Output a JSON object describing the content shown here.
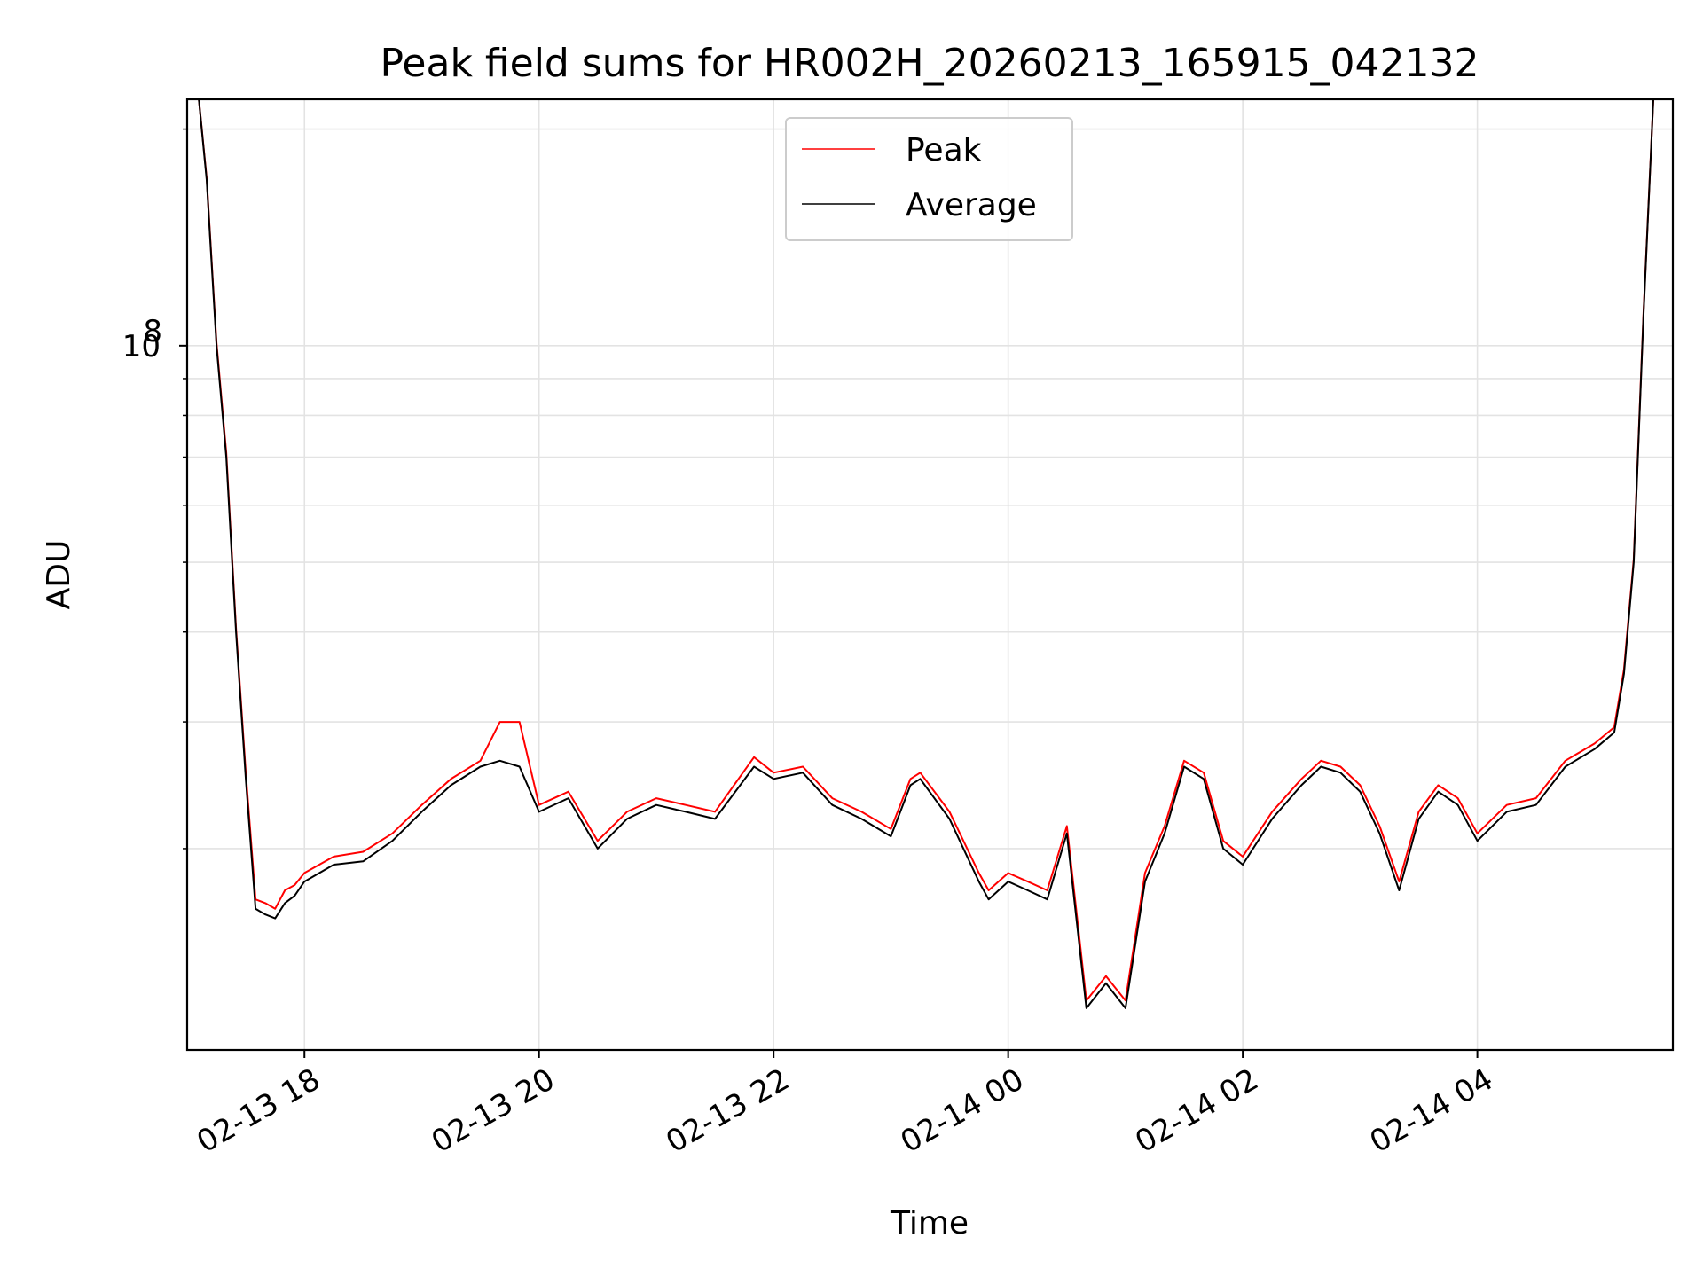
{
  "chart_data": {
    "type": "line",
    "title": "Peak field sums for HR002H_20260213_165915_042132",
    "xlabel": "Time",
    "ylabel": "ADU",
    "yscale": "log",
    "grid": true,
    "legend_position": "top-center",
    "x_axis": {
      "type": "datetime",
      "range": [
        "2026-02-13 17:00",
        "2026-02-14 05:40"
      ],
      "ticks": [
        {
          "value": "2026-02-13 18:00",
          "label": "02-13 18"
        },
        {
          "value": "2026-02-13 20:00",
          "label": "02-13 20"
        },
        {
          "value": "2026-02-13 22:00",
          "label": "02-13 22"
        },
        {
          "value": "2026-02-14 00:00",
          "label": "02-14 00"
        },
        {
          "value": "2026-02-14 02:00",
          "label": "02-14 02"
        },
        {
          "value": "2026-02-14 04:00",
          "label": "02-14 04"
        }
      ]
    },
    "y_axis": {
      "range": [
        10500000,
        220000000
      ],
      "major_ticks": [
        {
          "value": 100000000,
          "base": "10",
          "exp": "8"
        }
      ],
      "minor_ticks": [
        20000000,
        30000000,
        40000000,
        50000000,
        60000000,
        70000000,
        80000000,
        90000000,
        200000000
      ]
    },
    "x": [
      "2026-02-13 17:06",
      "2026-02-13 17:10",
      "2026-02-13 17:15",
      "2026-02-13 17:20",
      "2026-02-13 17:25",
      "2026-02-13 17:30",
      "2026-02-13 17:35",
      "2026-02-13 17:40",
      "2026-02-13 17:45",
      "2026-02-13 17:50",
      "2026-02-13 17:55",
      "2026-02-13 18:00",
      "2026-02-13 18:15",
      "2026-02-13 18:30",
      "2026-02-13 18:45",
      "2026-02-13 19:00",
      "2026-02-13 19:15",
      "2026-02-13 19:30",
      "2026-02-13 19:40",
      "2026-02-13 19:50",
      "2026-02-13 20:00",
      "2026-02-13 20:15",
      "2026-02-13 20:30",
      "2026-02-13 20:45",
      "2026-02-13 21:00",
      "2026-02-13 21:15",
      "2026-02-13 21:30",
      "2026-02-13 21:50",
      "2026-02-13 22:00",
      "2026-02-13 22:15",
      "2026-02-13 22:30",
      "2026-02-13 22:45",
      "2026-02-13 23:00",
      "2026-02-13 23:10",
      "2026-02-13 23:15",
      "2026-02-13 23:30",
      "2026-02-13 23:45",
      "2026-02-13 23:50",
      "2026-02-14 00:00",
      "2026-02-14 00:10",
      "2026-02-14 00:20",
      "2026-02-14 00:30",
      "2026-02-14 00:40",
      "2026-02-14 00:50",
      "2026-02-14 01:00",
      "2026-02-14 01:10",
      "2026-02-14 01:20",
      "2026-02-14 01:30",
      "2026-02-14 01:40",
      "2026-02-14 01:50",
      "2026-02-14 02:00",
      "2026-02-14 02:15",
      "2026-02-14 02:30",
      "2026-02-14 02:40",
      "2026-02-14 02:50",
      "2026-02-14 03:00",
      "2026-02-14 03:10",
      "2026-02-14 03:20",
      "2026-02-14 03:30",
      "2026-02-14 03:40",
      "2026-02-14 03:50",
      "2026-02-14 04:00",
      "2026-02-14 04:15",
      "2026-02-14 04:30",
      "2026-02-14 04:45",
      "2026-02-14 05:00",
      "2026-02-14 05:10",
      "2026-02-14 05:15",
      "2026-02-14 05:20",
      "2026-02-14 05:25",
      "2026-02-14 05:30"
    ],
    "series": [
      {
        "name": "Average",
        "color": "#000000",
        "values": [
          220000000,
          170000000,
          100000000,
          70000000,
          40000000,
          25000000,
          16500000,
          16200000,
          16000000,
          16800000,
          17200000,
          18000000,
          19000000,
          19200000,
          20500000,
          22500000,
          24500000,
          26000000,
          26500000,
          26000000,
          22500000,
          23500000,
          20000000,
          22000000,
          23000000,
          22500000,
          22000000,
          26000000,
          25000000,
          25500000,
          23000000,
          22000000,
          20800000,
          24500000,
          25000000,
          22000000,
          18000000,
          17000000,
          18000000,
          17500000,
          17000000,
          21000000,
          12000000,
          13000000,
          12000000,
          18000000,
          21000000,
          26000000,
          25000000,
          20000000,
          19000000,
          22000000,
          24500000,
          26000000,
          25500000,
          24000000,
          21000000,
          17500000,
          22000000,
          24000000,
          23000000,
          20500000,
          22500000,
          23000000,
          26000000,
          27500000,
          29000000,
          35000000,
          50000000,
          110000000,
          220000000
        ]
      },
      {
        "name": "Peak",
        "color": "#ff0000",
        "values": [
          220000000,
          171000000,
          101000000,
          71000000,
          40500000,
          25500000,
          17000000,
          16800000,
          16500000,
          17500000,
          17800000,
          18500000,
          19500000,
          19800000,
          21000000,
          23000000,
          25000000,
          26500000,
          30000000,
          30000000,
          23000000,
          24000000,
          20500000,
          22500000,
          23500000,
          23000000,
          22500000,
          26800000,
          25500000,
          26000000,
          23500000,
          22500000,
          21300000,
          25000000,
          25500000,
          22500000,
          18500000,
          17500000,
          18500000,
          18000000,
          17500000,
          21500000,
          12300000,
          13300000,
          12300000,
          18500000,
          21500000,
          26500000,
          25500000,
          20500000,
          19500000,
          22500000,
          25000000,
          26500000,
          26000000,
          24500000,
          21500000,
          18000000,
          22500000,
          24500000,
          23500000,
          21000000,
          23000000,
          23500000,
          26500000,
          28000000,
          29500000,
          35500000,
          50500000,
          111000000,
          220000000
        ]
      }
    ]
  }
}
